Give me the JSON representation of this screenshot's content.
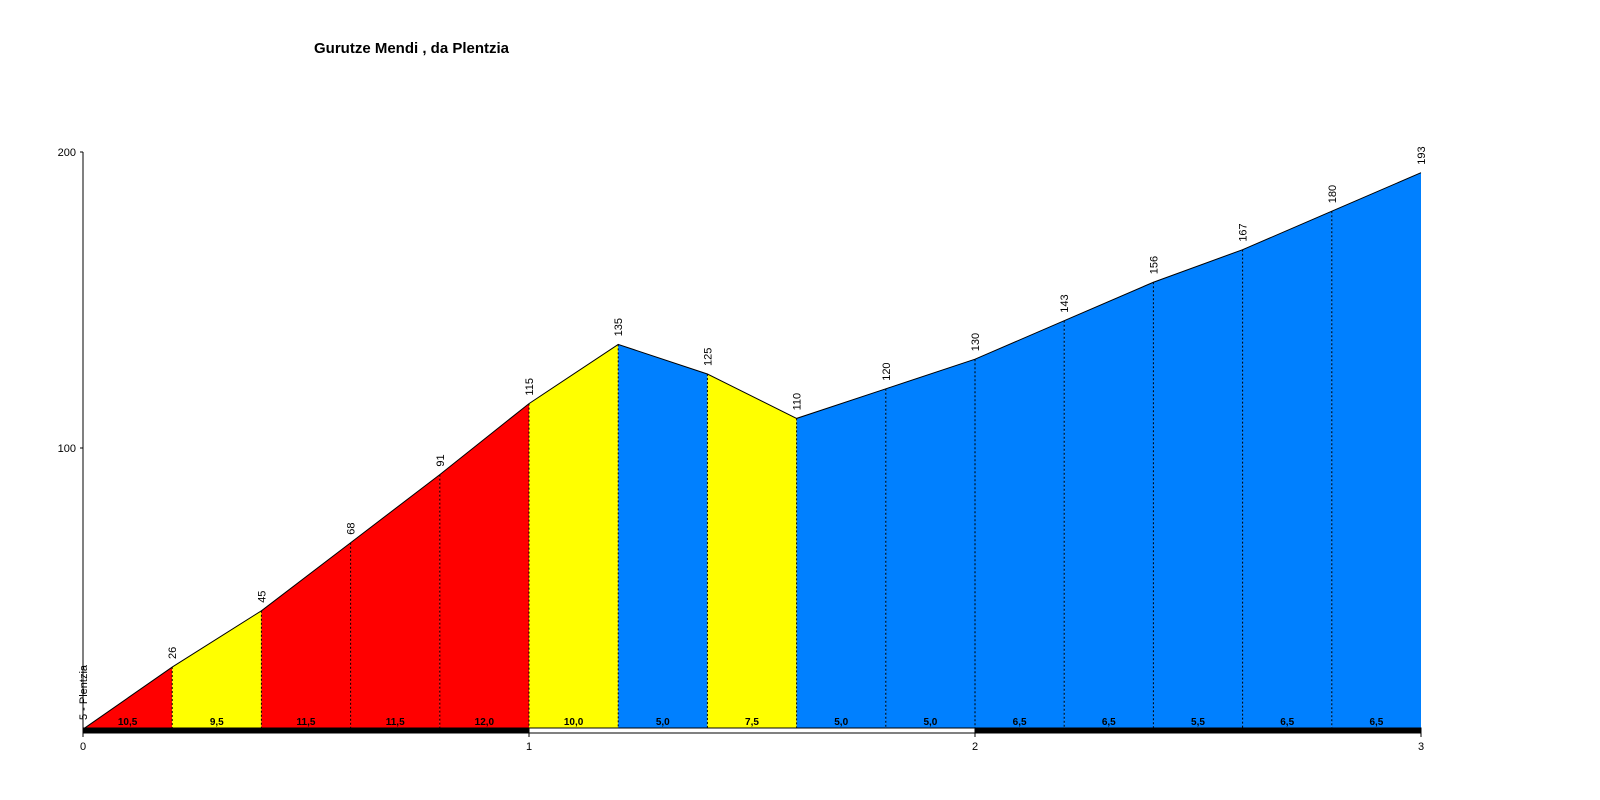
{
  "chart_data": {
    "type": "area",
    "title": "Gurutze Mendi , da Plentzia",
    "x": [
      0,
      0.2,
      0.4,
      0.6,
      0.8,
      1.0,
      1.2,
      1.4,
      1.6,
      1.8,
      2.0,
      2.2,
      2.4,
      2.6,
      2.8,
      3.0
    ],
    "values": [
      5,
      26,
      45,
      68,
      91,
      115,
      135,
      125,
      110,
      120,
      130,
      143,
      156,
      167,
      180,
      193
    ],
    "value_labels": [
      "5 - Plentzia",
      "26",
      "45",
      "68",
      "91",
      "115",
      "135",
      "125",
      "110",
      "120",
      "130",
      "143",
      "156",
      "167",
      "180",
      "193"
    ],
    "segments": {
      "values": [
        10.5,
        9.5,
        11.5,
        11.5,
        12.0,
        10.0,
        5.0,
        7.5,
        5.0,
        5.0,
        6.5,
        6.5,
        5.5,
        6.5,
        6.5
      ],
      "value_labels": [
        "10,5",
        "9,5",
        "11,5",
        "11,5",
        "12,0",
        "10,0",
        "5,0",
        "7,5",
        "5,0",
        "5,0",
        "6,5",
        "6,5",
        "5,5",
        "6,5",
        "6,5"
      ],
      "colors": [
        "#ff0000",
        "#ffff00",
        "#ff0000",
        "#ff0000",
        "#ff0000",
        "#ffff00",
        "#0080ff",
        "#ffff00",
        "#0080ff",
        "#0080ff",
        "#0080ff",
        "#0080ff",
        "#0080ff",
        "#0080ff",
        "#0080ff"
      ]
    },
    "xlim": [
      0,
      3
    ],
    "xticks": [
      0,
      1,
      2,
      3
    ],
    "ylim": [
      0,
      200
    ],
    "yticks": [
      100,
      200
    ]
  }
}
